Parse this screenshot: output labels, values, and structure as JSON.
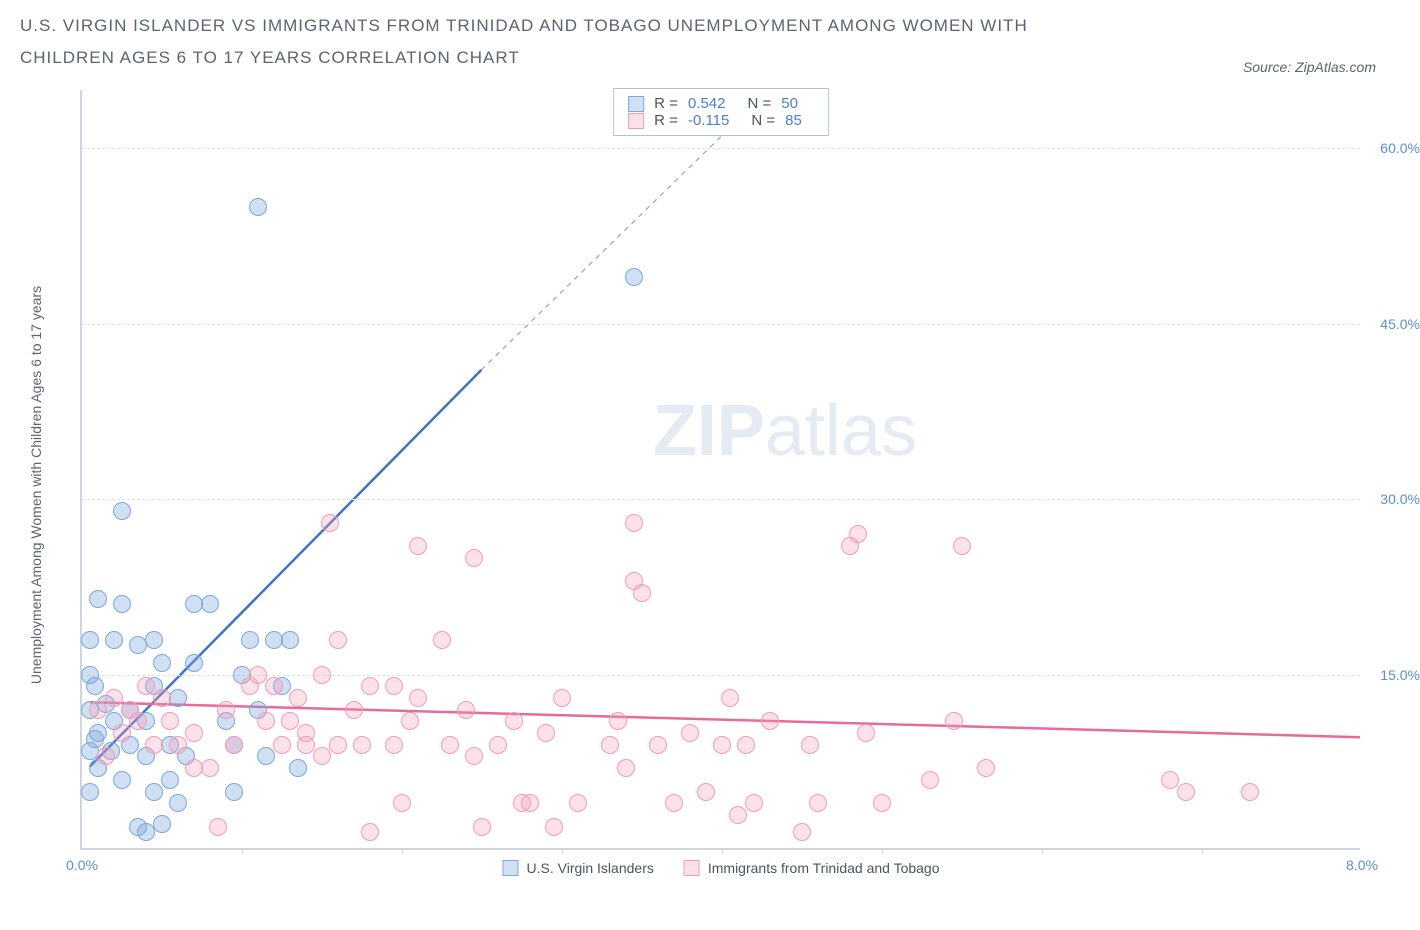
{
  "title": "U.S. VIRGIN ISLANDER VS IMMIGRANTS FROM TRINIDAD AND TOBAGO UNEMPLOYMENT AMONG WOMEN WITH CHILDREN AGES 6 TO 17 YEARS CORRELATION CHART",
  "source": "Source: ZipAtlas.com",
  "watermark_a": "ZIP",
  "watermark_b": "atlas",
  "y_axis_label": "Unemployment Among Women with Children Ages 6 to 17 years",
  "chart": {
    "type": "scatter",
    "xlim": [
      0,
      8
    ],
    "ylim": [
      0,
      65
    ],
    "y_ticks": [
      15,
      30,
      45,
      60
    ],
    "y_tick_labels": [
      "15.0%",
      "30.0%",
      "45.0%",
      "60.0%"
    ],
    "x_ticks_at": [
      0,
      8
    ],
    "x_tick_labels": [
      "0.0%",
      "8.0%"
    ],
    "x_minor_ticks": [
      1,
      2,
      3,
      4,
      5,
      6,
      7
    ],
    "grid_color": "#dfe4e9",
    "bg": "#ffffff",
    "axis_color": "#cfd6dd",
    "label_color": "#5b8fd6",
    "series": [
      {
        "name": "U.S. Virgin Islanders",
        "color_fill": "rgba(121,166,220,0.35)",
        "color_stroke": "#7aa7dc",
        "trend_color": "#3e74c8",
        "trend": {
          "x1": 0.05,
          "y1": 7,
          "x2": 2.5,
          "y2": 41,
          "ext_x": 4.3,
          "ext_y": 65
        },
        "R": "0.542",
        "N": "50",
        "points": [
          [
            0.05,
            5
          ],
          [
            0.1,
            7
          ],
          [
            0.25,
            6
          ],
          [
            0.1,
            10
          ],
          [
            0.05,
            12
          ],
          [
            0.15,
            12.5
          ],
          [
            0.2,
            11
          ],
          [
            0.3,
            9
          ],
          [
            0.18,
            8.5
          ],
          [
            0.35,
            2
          ],
          [
            0.4,
            1.5
          ],
          [
            0.5,
            2.2
          ],
          [
            0.4,
            8
          ],
          [
            0.2,
            18
          ],
          [
            0.35,
            17.5
          ],
          [
            0.05,
            18
          ],
          [
            0.05,
            15
          ],
          [
            0.55,
            9
          ],
          [
            0.6,
            13
          ],
          [
            0.65,
            8
          ],
          [
            0.5,
            16
          ],
          [
            0.7,
            16
          ],
          [
            0.45,
            18
          ],
          [
            0.7,
            21
          ],
          [
            0.8,
            21
          ],
          [
            0.25,
            21
          ],
          [
            0.1,
            21.5
          ],
          [
            0.25,
            29
          ],
          [
            1.05,
            18
          ],
          [
            1.1,
            12
          ],
          [
            1.2,
            18
          ],
          [
            1.25,
            14
          ],
          [
            1.3,
            18
          ],
          [
            1.1,
            55
          ],
          [
            1.15,
            8
          ],
          [
            0.9,
            11
          ],
          [
            0.95,
            9
          ],
          [
            0.95,
            5
          ],
          [
            1.0,
            15
          ],
          [
            1.35,
            7
          ],
          [
            0.08,
            9.5
          ],
          [
            0.3,
            12
          ],
          [
            0.4,
            11
          ],
          [
            0.45,
            14
          ],
          [
            0.08,
            14
          ],
          [
            0.55,
            6
          ],
          [
            0.6,
            4
          ],
          [
            0.45,
            5
          ],
          [
            3.45,
            49
          ],
          [
            0.05,
            8.5
          ]
        ]
      },
      {
        "name": "Immigrants from Trinidad and Tobago",
        "color_fill": "rgba(244,155,183,0.30)",
        "color_stroke": "#f29bb8",
        "trend_color": "#e76a9a",
        "trend": {
          "x1": 0.05,
          "y1": 12.5,
          "x2": 8.0,
          "y2": 9.5
        },
        "R": "-0.115",
        "N": "85",
        "points": [
          [
            0.1,
            12
          ],
          [
            0.2,
            13
          ],
          [
            0.3,
            12
          ],
          [
            0.4,
            14
          ],
          [
            0.5,
            13
          ],
          [
            0.25,
            10
          ],
          [
            0.35,
            11
          ],
          [
            0.55,
            11
          ],
          [
            0.45,
            9
          ],
          [
            0.6,
            9
          ],
          [
            0.7,
            10
          ],
          [
            0.7,
            7
          ],
          [
            0.8,
            7
          ],
          [
            0.9,
            12
          ],
          [
            0.85,
            2
          ],
          [
            0.95,
            9
          ],
          [
            1.05,
            14
          ],
          [
            1.1,
            15
          ],
          [
            1.2,
            14
          ],
          [
            1.3,
            11
          ],
          [
            1.35,
            13
          ],
          [
            1.4,
            10
          ],
          [
            1.4,
            9
          ],
          [
            1.5,
            8
          ],
          [
            1.5,
            15
          ],
          [
            1.55,
            28
          ],
          [
            1.6,
            9
          ],
          [
            1.6,
            18
          ],
          [
            1.7,
            12
          ],
          [
            1.75,
            9
          ],
          [
            1.8,
            1.5
          ],
          [
            1.8,
            14
          ],
          [
            1.95,
            14
          ],
          [
            1.95,
            9
          ],
          [
            2.0,
            4
          ],
          [
            2.05,
            11
          ],
          [
            2.1,
            26
          ],
          [
            2.1,
            13
          ],
          [
            2.25,
            18
          ],
          [
            2.3,
            9
          ],
          [
            2.4,
            12
          ],
          [
            2.45,
            8
          ],
          [
            2.5,
            2
          ],
          [
            2.45,
            25
          ],
          [
            2.6,
            9
          ],
          [
            2.7,
            11
          ],
          [
            2.75,
            4
          ],
          [
            2.9,
            10
          ],
          [
            2.95,
            2
          ],
          [
            3.0,
            13
          ],
          [
            3.1,
            4
          ],
          [
            3.3,
            9
          ],
          [
            3.35,
            11
          ],
          [
            3.4,
            7
          ],
          [
            3.45,
            23
          ],
          [
            3.5,
            22
          ],
          [
            3.45,
            28
          ],
          [
            3.6,
            9
          ],
          [
            3.7,
            4
          ],
          [
            3.8,
            10
          ],
          [
            4.0,
            9
          ],
          [
            4.05,
            13
          ],
          [
            4.1,
            3
          ],
          [
            4.2,
            4
          ],
          [
            4.3,
            11
          ],
          [
            4.5,
            1.5
          ],
          [
            4.55,
            9
          ],
          [
            4.6,
            4
          ],
          [
            4.8,
            26
          ],
          [
            4.85,
            27
          ],
          [
            4.9,
            10
          ],
          [
            5.0,
            4
          ],
          [
            5.3,
            6
          ],
          [
            5.45,
            11
          ],
          [
            5.5,
            26
          ],
          [
            5.65,
            7
          ],
          [
            6.8,
            6
          ],
          [
            6.9,
            5
          ],
          [
            7.3,
            5
          ],
          [
            4.15,
            9
          ],
          [
            3.9,
            5
          ],
          [
            2.8,
            4
          ],
          [
            1.15,
            11
          ],
          [
            1.25,
            9
          ],
          [
            0.15,
            8
          ]
        ]
      }
    ]
  },
  "legend_stats_labels": {
    "R": "R =",
    "N": "N ="
  },
  "bottom_legend": [
    "U.S. Virgin Islanders",
    "Immigrants from Trinidad and Tobago"
  ]
}
